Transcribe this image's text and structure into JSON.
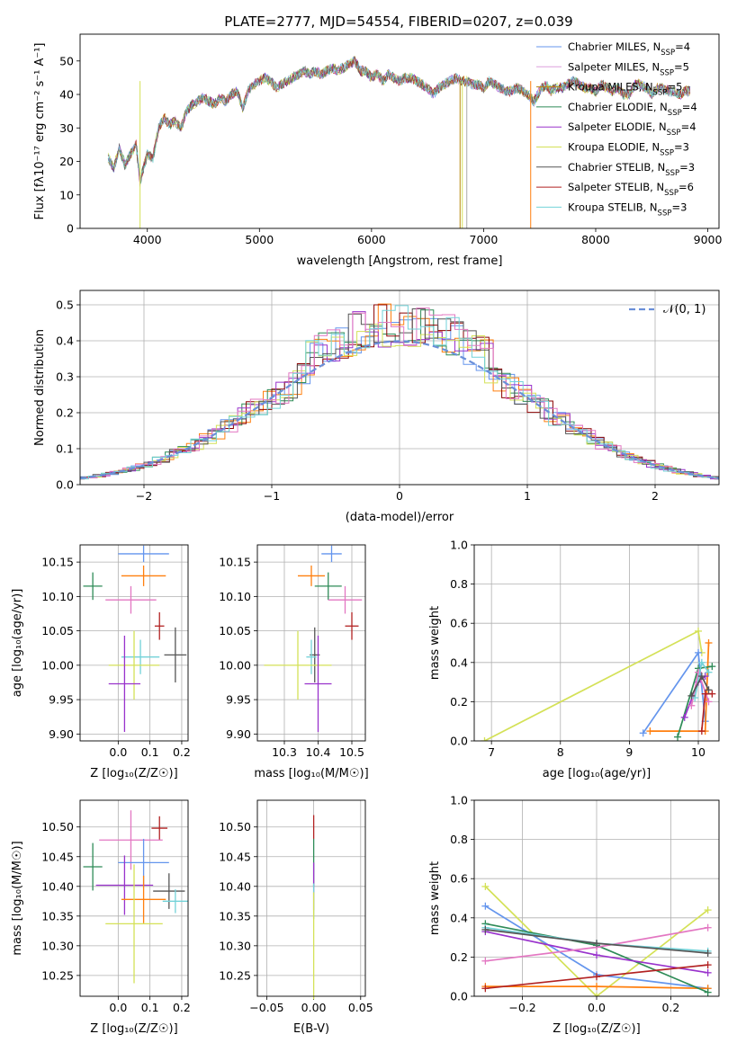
{
  "figure": {
    "title": "PLATE=2777, MJD=54554, FIBERID=0207, z=0.039"
  },
  "chart_data": [
    {
      "id": "spectrum",
      "type": "line",
      "xlabel": "wavelength [Angstrom, rest frame]",
      "ylabel": "Flux [fλ10⁻¹⁷ erg cm⁻² s⁻¹ A⁻¹]",
      "xlim": [
        3400,
        9100
      ],
      "ylim": [
        0,
        58
      ],
      "xticks": [
        4000,
        5000,
        6000,
        7000,
        8000,
        9000
      ],
      "yticks": [
        0,
        10,
        20,
        30,
        40,
        50
      ],
      "grid": false,
      "legend_position": "top-right",
      "spectrum_points": [
        [
          3650,
          21
        ],
        [
          3700,
          18
        ],
        [
          3750,
          24
        ],
        [
          3800,
          19
        ],
        [
          3850,
          22
        ],
        [
          3900,
          25
        ],
        [
          3935,
          14
        ],
        [
          3965,
          18
        ],
        [
          4000,
          22
        ],
        [
          4050,
          21
        ],
        [
          4100,
          30
        ],
        [
          4150,
          33
        ],
        [
          4200,
          31
        ],
        [
          4250,
          32
        ],
        [
          4300,
          30
        ],
        [
          4350,
          35
        ],
        [
          4400,
          37
        ],
        [
          4450,
          38
        ],
        [
          4500,
          39
        ],
        [
          4550,
          38
        ],
        [
          4600,
          37
        ],
        [
          4650,
          39
        ],
        [
          4700,
          38
        ],
        [
          4750,
          40
        ],
        [
          4800,
          41
        ],
        [
          4850,
          36
        ],
        [
          4900,
          41
        ],
        [
          4950,
          43
        ],
        [
          5000,
          44
        ],
        [
          5050,
          45
        ],
        [
          5100,
          44
        ],
        [
          5150,
          42
        ],
        [
          5200,
          43
        ],
        [
          5250,
          44
        ],
        [
          5300,
          45
        ],
        [
          5350,
          46
        ],
        [
          5400,
          47
        ],
        [
          5450,
          46
        ],
        [
          5500,
          47
        ],
        [
          5550,
          46
        ],
        [
          5600,
          47
        ],
        [
          5650,
          48
        ],
        [
          5700,
          47
        ],
        [
          5750,
          48
        ],
        [
          5800,
          49
        ],
        [
          5850,
          50
        ],
        [
          5900,
          47
        ],
        [
          5950,
          47
        ],
        [
          6000,
          45
        ],
        [
          6050,
          46
        ],
        [
          6100,
          44
        ],
        [
          6150,
          46
        ],
        [
          6200,
          45
        ],
        [
          6250,
          44
        ],
        [
          6300,
          45
        ],
        [
          6350,
          45
        ],
        [
          6400,
          44
        ],
        [
          6450,
          43
        ],
        [
          6500,
          42
        ],
        [
          6550,
          40
        ],
        [
          6600,
          42
        ],
        [
          6650,
          43
        ],
        [
          6700,
          44
        ],
        [
          6750,
          45
        ],
        [
          6800,
          44
        ],
        [
          6850,
          44
        ],
        [
          6900,
          43
        ],
        [
          6950,
          43
        ],
        [
          7000,
          42
        ],
        [
          7050,
          44
        ],
        [
          7100,
          43
        ],
        [
          7150,
          42
        ],
        [
          7200,
          41
        ],
        [
          7250,
          41
        ],
        [
          7300,
          42
        ],
        [
          7350,
          41
        ],
        [
          7400,
          40
        ],
        [
          7450,
          38
        ],
        [
          7500,
          41
        ],
        [
          7550,
          43
        ],
        [
          7600,
          41
        ],
        [
          7650,
          42
        ],
        [
          7700,
          42
        ],
        [
          7750,
          43
        ],
        [
          7800,
          44
        ],
        [
          7850,
          43
        ],
        [
          7900,
          42
        ],
        [
          7950,
          42
        ],
        [
          8000,
          41
        ],
        [
          8050,
          43
        ],
        [
          8100,
          42
        ],
        [
          8150,
          41
        ],
        [
          8200,
          42
        ],
        [
          8250,
          40
        ],
        [
          8300,
          40
        ],
        [
          8350,
          43
        ],
        [
          8400,
          43
        ],
        [
          8450,
          42
        ],
        [
          8500,
          40
        ],
        [
          8550,
          42
        ],
        [
          8600,
          42
        ],
        [
          8650,
          41
        ],
        [
          8700,
          41
        ],
        [
          8750,
          40
        ],
        [
          8800,
          41
        ],
        [
          8850,
          41
        ]
      ],
      "series": [
        {
          "name": "Chabrier MILES, N",
          "subscript": "SSP",
          "suffix": "=4",
          "color": "#6495ed"
        },
        {
          "name": "Salpeter MILES, N",
          "subscript": "SSP",
          "suffix": "=5",
          "color": "#dda0dd"
        },
        {
          "name": "Kroupa MILES, N",
          "subscript": "SSP",
          "suffix": "=5",
          "color": "#b8860b"
        },
        {
          "name": "Chabrier ELODIE, N",
          "subscript": "SSP",
          "suffix": "=4",
          "color": "#2e8b57"
        },
        {
          "name": "Salpeter ELODIE, N",
          "subscript": "SSP",
          "suffix": "=4",
          "color": "#9932cc"
        },
        {
          "name": "Kroupa ELODIE, N",
          "subscript": "SSP",
          "suffix": "=3",
          "color": "#d4e157"
        },
        {
          "name": "Chabrier STELIB, N",
          "subscript": "SSP",
          "suffix": "=3",
          "color": "#555555"
        },
        {
          "name": "Salpeter STELIB, N",
          "subscript": "SSP",
          "suffix": "=6",
          "color": "#b22222"
        },
        {
          "name": "Kroupa STELIB, N",
          "subscript": "SSP",
          "suffix": "=3",
          "color": "#72d2d8"
        }
      ]
    },
    {
      "id": "residuals",
      "type": "histogram",
      "xlabel": "(data-model)/error",
      "ylabel": "Normed distribution",
      "xlim": [
        -2.5,
        2.5
      ],
      "ylim": [
        0,
        0.54
      ],
      "xticks": [
        -2,
        -1,
        0,
        1,
        2
      ],
      "yticks": [
        0.0,
        0.1,
        0.2,
        0.3,
        0.4,
        0.5
      ],
      "grid": true,
      "bin_width": 0.1,
      "reference_curve": {
        "name": "𝒩(0, 1)",
        "color": "#6a8fd8",
        "style": "dashed"
      },
      "series_colors": [
        "#6495ed",
        "#ff7f0e",
        "#2e8b57",
        "#8b0000",
        "#9932cc",
        "#d4e157",
        "#555555",
        "#e377c2",
        "#72d2d8"
      ]
    },
    {
      "id": "age-vs-Z",
      "type": "scatter",
      "xlabel": "Z [log₁₀(Z/Z☉)]",
      "ylabel": "age [log₁₀(age/yr)]",
      "xlim": [
        -0.12,
        0.22
      ],
      "ylim": [
        9.89,
        10.175
      ],
      "xticks": [
        0.0,
        0.1,
        0.2
      ],
      "yticks": [
        9.9,
        9.95,
        10.0,
        10.05,
        10.1,
        10.15
      ],
      "grid": true,
      "points": [
        {
          "x": 0.08,
          "xerr": 0.08,
          "y": 10.162,
          "yerr": 0.012,
          "color": "#6495ed"
        },
        {
          "x": 0.08,
          "xerr": 0.07,
          "y": 10.13,
          "yerr": 0.015,
          "color": "#ff7f0e"
        },
        {
          "x": -0.08,
          "xerr": 0.03,
          "y": 10.115,
          "yerr": 0.02,
          "color": "#2e8b57"
        },
        {
          "x": 0.04,
          "xerr": 0.08,
          "y": 10.095,
          "yerr": 0.02,
          "color": "#e377c2"
        },
        {
          "x": 0.13,
          "xerr": 0.015,
          "y": 10.057,
          "yerr": 0.02,
          "color": "#b22222"
        },
        {
          "x": 0.18,
          "xerr": 0.035,
          "y": 10.015,
          "yerr": 0.04,
          "color": "#555555"
        },
        {
          "x": 0.07,
          "xerr": 0.06,
          "y": 10.012,
          "yerr": 0.025,
          "color": "#72d2d8"
        },
        {
          "x": 0.05,
          "xerr": 0.08,
          "y": 10.0,
          "yerr": 0.05,
          "color": "#d4e157"
        },
        {
          "x": 0.02,
          "xerr": 0.05,
          "y": 9.973,
          "yerr": 0.07,
          "color": "#9932cc"
        }
      ]
    },
    {
      "id": "age-vs-mass",
      "type": "scatter",
      "xlabel": "mass [log₁₀(M/M☉)]",
      "ylabel": "",
      "xlim": [
        10.22,
        10.54
      ],
      "ylim": [
        9.89,
        10.175
      ],
      "xticks": [
        10.3,
        10.4,
        10.5
      ],
      "yticks": [
        9.9,
        9.95,
        10.0,
        10.05,
        10.1,
        10.15
      ],
      "grid": true,
      "points": [
        {
          "x": 10.44,
          "xerr": 0.03,
          "y": 10.162,
          "yerr": 0.012,
          "color": "#6495ed"
        },
        {
          "x": 10.38,
          "xerr": 0.04,
          "y": 10.13,
          "yerr": 0.015,
          "color": "#ff7f0e"
        },
        {
          "x": 10.43,
          "xerr": 0.04,
          "y": 10.115,
          "yerr": 0.02,
          "color": "#2e8b57"
        },
        {
          "x": 10.48,
          "xerr": 0.05,
          "y": 10.095,
          "yerr": 0.02,
          "color": "#e377c2"
        },
        {
          "x": 10.5,
          "xerr": 0.02,
          "y": 10.057,
          "yerr": 0.02,
          "color": "#b22222"
        },
        {
          "x": 10.39,
          "xerr": 0.015,
          "y": 10.015,
          "yerr": 0.04,
          "color": "#555555"
        },
        {
          "x": 10.38,
          "xerr": 0.015,
          "y": 10.012,
          "yerr": 0.025,
          "color": "#72d2d8"
        },
        {
          "x": 10.34,
          "xerr": 0.1,
          "y": 10.0,
          "yerr": 0.05,
          "color": "#d4e157"
        },
        {
          "x": 10.4,
          "xerr": 0.04,
          "y": 9.973,
          "yerr": 0.07,
          "color": "#9932cc"
        }
      ]
    },
    {
      "id": "weight-vs-age",
      "type": "line",
      "xlabel": "age [log₁₀(age/yr)]",
      "ylabel": "mass weight",
      "xlim": [
        6.75,
        10.3
      ],
      "ylim": [
        0,
        1.0
      ],
      "xticks": [
        7,
        8,
        9,
        10
      ],
      "yticks": [
        0.0,
        0.2,
        0.4,
        0.6,
        0.8,
        1.0
      ],
      "grid": true,
      "series": [
        {
          "color": "#d4e157",
          "x": [
            6.9,
            10.0,
            10.05
          ],
          "y": [
            0.0,
            0.56,
            0.45
          ]
        },
        {
          "color": "#6495ed",
          "x": [
            9.2,
            10.0,
            10.1
          ],
          "y": [
            0.04,
            0.45,
            0.1
          ]
        },
        {
          "color": "#ff7f0e",
          "x": [
            9.3,
            10.1,
            10.15
          ],
          "y": [
            0.05,
            0.05,
            0.5
          ]
        },
        {
          "color": "#2e8b57",
          "x": [
            9.7,
            10.0,
            10.2
          ],
          "y": [
            0.02,
            0.37,
            0.38
          ]
        },
        {
          "color": "#9932cc",
          "x": [
            9.8,
            10.0,
            10.1
          ],
          "y": [
            0.12,
            0.3,
            0.33
          ]
        },
        {
          "color": "#e377c2",
          "x": [
            9.9,
            10.0,
            10.15
          ],
          "y": [
            0.18,
            0.35,
            0.2
          ]
        },
        {
          "color": "#72d2d8",
          "x": [
            9.95,
            10.05,
            10.15
          ],
          "y": [
            0.22,
            0.4,
            0.35
          ]
        },
        {
          "color": "#b22222",
          "x": [
            10.05,
            10.1,
            10.2
          ],
          "y": [
            0.05,
            0.24,
            0.24
          ]
        },
        {
          "color": "#555555",
          "x": [
            9.9,
            10.05,
            10.15
          ],
          "y": [
            0.23,
            0.33,
            0.26
          ]
        }
      ]
    },
    {
      "id": "mass-vs-Z",
      "type": "scatter",
      "xlabel": "Z [log₁₀(Z/Z☉)]",
      "ylabel": "mass [log₁₀(M/M☉)]",
      "xlim": [
        -0.12,
        0.22
      ],
      "ylim": [
        10.215,
        10.545
      ],
      "xticks": [
        0.0,
        0.1,
        0.2
      ],
      "yticks": [
        10.25,
        10.3,
        10.35,
        10.4,
        10.45,
        10.5
      ],
      "grid": true,
      "points": [
        {
          "x": 0.13,
          "xerr": 0.025,
          "y": 10.498,
          "yerr": 0.02,
          "color": "#b22222"
        },
        {
          "x": 0.04,
          "xerr": 0.1,
          "y": 10.478,
          "yerr": 0.05,
          "color": "#e377c2"
        },
        {
          "x": 0.08,
          "xerr": 0.08,
          "y": 10.44,
          "yerr": 0.04,
          "color": "#6495ed"
        },
        {
          "x": -0.08,
          "xerr": 0.03,
          "y": 10.433,
          "yerr": 0.04,
          "color": "#2e8b57"
        },
        {
          "x": 0.02,
          "xerr": 0.09,
          "y": 10.402,
          "yerr": 0.05,
          "color": "#9932cc"
        },
        {
          "x": 0.16,
          "xerr": 0.05,
          "y": 10.392,
          "yerr": 0.03,
          "color": "#555555"
        },
        {
          "x": 0.08,
          "xerr": 0.07,
          "y": 10.378,
          "yerr": 0.04,
          "color": "#ff7f0e"
        },
        {
          "x": 0.18,
          "xerr": 0.04,
          "y": 10.375,
          "yerr": 0.02,
          "color": "#72d2d8"
        },
        {
          "x": 0.05,
          "xerr": 0.09,
          "y": 10.337,
          "yerr": 0.1,
          "color": "#d4e157"
        }
      ]
    },
    {
      "id": "mass-vs-ebv",
      "type": "scatter",
      "xlabel": "E(B-V)",
      "ylabel": "",
      "xlim": [
        -0.06,
        0.055
      ],
      "ylim": [
        10.215,
        10.545
      ],
      "xticks": [
        -0.05,
        0.0,
        0.05
      ],
      "xtick_labels": [
        "−0.05",
        "0.00",
        "0.05"
      ],
      "yticks": [
        10.25,
        10.3,
        10.35,
        10.4,
        10.45,
        10.5
      ],
      "grid": true,
      "points": [
        {
          "x": 0.0,
          "y": 10.5,
          "yerr": 0.02,
          "color": "#b22222"
        },
        {
          "x": 0.0,
          "y": 10.44,
          "yerr": 0.04,
          "color": "#2e8b57"
        },
        {
          "x": 0.0,
          "y": 10.4,
          "yerr": 0.04,
          "color": "#9932cc"
        },
        {
          "x": 0.0,
          "y": 10.375,
          "yerr": 0.03,
          "color": "#72d2d8"
        },
        {
          "x": 0.0,
          "y": 10.3,
          "yerr": 0.09,
          "color": "#d4e157"
        }
      ]
    },
    {
      "id": "weight-vs-Z",
      "type": "line",
      "xlabel": "Z [log₁₀(Z/Z☉)]",
      "ylabel": "mass weight",
      "xlim": [
        -0.33,
        0.33
      ],
      "ylim": [
        0,
        1.0
      ],
      "xticks": [
        -0.2,
        0.0,
        0.2
      ],
      "xtick_labels": [
        "−0.2",
        "0.0",
        "0.2"
      ],
      "yticks": [
        0.0,
        0.2,
        0.4,
        0.6,
        0.8,
        1.0
      ],
      "grid": true,
      "series": [
        {
          "color": "#d4e157",
          "x": [
            -0.3,
            0.0,
            0.3
          ],
          "y": [
            0.56,
            0.0,
            0.44
          ]
        },
        {
          "color": "#6495ed",
          "x": [
            -0.3,
            0.0,
            0.3
          ],
          "y": [
            0.46,
            0.11,
            0.04
          ]
        },
        {
          "color": "#ff7f0e",
          "x": [
            -0.3,
            0.0,
            0.3
          ],
          "y": [
            0.05,
            0.05,
            0.04
          ]
        },
        {
          "color": "#2e8b57",
          "x": [
            -0.3,
            0.0,
            0.3
          ],
          "y": [
            0.37,
            0.26,
            0.02
          ]
        },
        {
          "color": "#9932cc",
          "x": [
            -0.3,
            0.0,
            0.3
          ],
          "y": [
            0.33,
            0.21,
            0.12
          ]
        },
        {
          "color": "#e377c2",
          "x": [
            -0.3,
            0.0,
            0.3
          ],
          "y": [
            0.18,
            0.25,
            0.35
          ]
        },
        {
          "color": "#72d2d8",
          "x": [
            -0.3,
            0.0,
            0.3
          ],
          "y": [
            0.35,
            0.27,
            0.23
          ]
        },
        {
          "color": "#b22222",
          "x": [
            -0.3,
            0.0,
            0.3
          ],
          "y": [
            0.04,
            0.1,
            0.16
          ]
        },
        {
          "color": "#555555",
          "x": [
            -0.3,
            0.0,
            0.3
          ],
          "y": [
            0.34,
            0.27,
            0.22
          ]
        }
      ]
    }
  ]
}
